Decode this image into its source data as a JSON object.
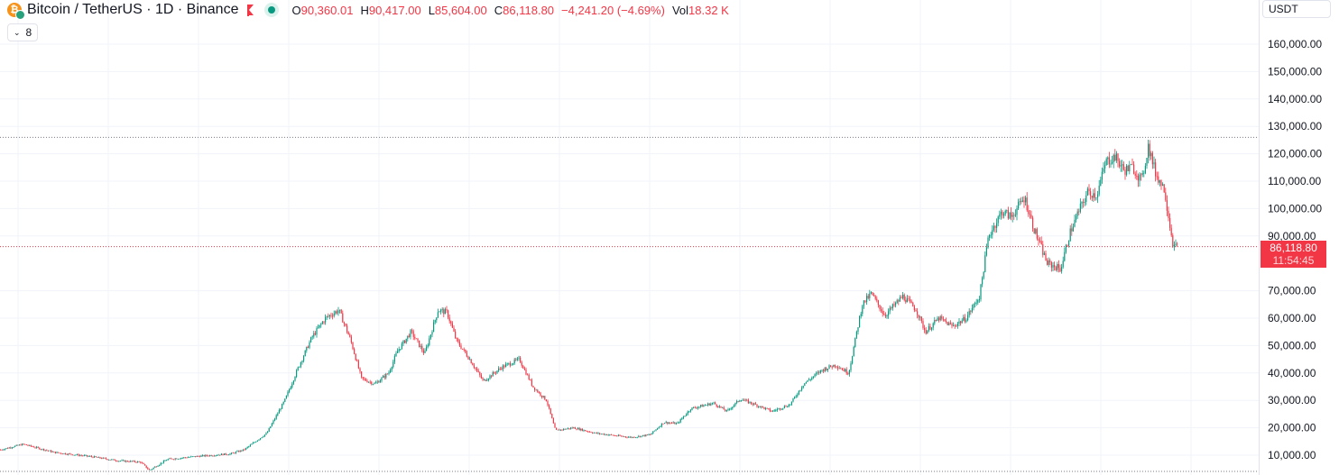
{
  "symbol": {
    "title": "Bitcoin / TetherUS · 1D · Binance",
    "logo_glyph": "₿",
    "flag_icon": "flag-icon",
    "status": "market-open"
  },
  "ohlc": {
    "o_label": "O",
    "o_value": "90,360.01",
    "h_label": "H",
    "h_value": "90,417.00",
    "l_label": "L",
    "l_value": "85,604.00",
    "c_label": "C",
    "c_value": "86,118.80",
    "change": "−4,241.20 (−4.69%)",
    "vol_label": "Vol",
    "vol_value": "18.32 K"
  },
  "indicators": {
    "count": "8"
  },
  "currency": {
    "label": "USDT"
  },
  "last_price": {
    "price": "86,118.80",
    "countdown": "11:54:45"
  },
  "colors": {
    "up": "#089981",
    "down": "#f23645",
    "grid": "#f0f3fa",
    "text": "#131722"
  },
  "chart_data": {
    "type": "candlestick",
    "price_scale": {
      "labels": [
        "160,000.00",
        "150,000.00",
        "140,000.00",
        "130,000.00",
        "120,000.00",
        "110,000.00",
        "100,000.00",
        "90,000.00",
        "70,000.00",
        "60,000.00",
        "50,000.00",
        "40,000.00",
        "30,000.00",
        "20,000.00",
        "10,000.00"
      ],
      "values": [
        160000,
        150000,
        140000,
        130000,
        120000,
        110000,
        100000,
        90000,
        70000,
        60000,
        50000,
        40000,
        30000,
        20000,
        10000
      ],
      "range": [
        3000,
        165000
      ]
    },
    "reference_lines": {
      "high_line": 126000,
      "last_price": 86118.8
    },
    "trend_points": [
      [
        0,
        12000
      ],
      [
        25,
        14000
      ],
      [
        60,
        11000
      ],
      [
        100,
        9500
      ],
      [
        130,
        8000
      ],
      [
        155,
        7500
      ],
      [
        165,
        4500
      ],
      [
        185,
        8500
      ],
      [
        215,
        9500
      ],
      [
        255,
        10500
      ],
      [
        270,
        12000
      ],
      [
        295,
        18000
      ],
      [
        315,
        30000
      ],
      [
        330,
        42000
      ],
      [
        345,
        53000
      ],
      [
        360,
        60000
      ],
      [
        375,
        63000
      ],
      [
        388,
        52000
      ],
      [
        400,
        38000
      ],
      [
        415,
        36000
      ],
      [
        430,
        40000
      ],
      [
        440,
        48000
      ],
      [
        455,
        55000
      ],
      [
        470,
        47000
      ],
      [
        485,
        63000
      ],
      [
        495,
        62000
      ],
      [
        505,
        52000
      ],
      [
        520,
        45000
      ],
      [
        535,
        37000
      ],
      [
        555,
        42000
      ],
      [
        575,
        45000
      ],
      [
        590,
        35000
      ],
      [
        605,
        30000
      ],
      [
        615,
        19000
      ],
      [
        635,
        20000
      ],
      [
        660,
        18000
      ],
      [
        685,
        17000
      ],
      [
        700,
        16500
      ],
      [
        720,
        17500
      ],
      [
        735,
        22000
      ],
      [
        750,
        21500
      ],
      [
        765,
        27000
      ],
      [
        790,
        29000
      ],
      [
        805,
        26000
      ],
      [
        820,
        30500
      ],
      [
        840,
        28000
      ],
      [
        855,
        26000
      ],
      [
        875,
        28500
      ],
      [
        890,
        36000
      ],
      [
        910,
        41000
      ],
      [
        925,
        43000
      ],
      [
        940,
        40000
      ],
      [
        955,
        65000
      ],
      [
        965,
        69000
      ],
      [
        980,
        61000
      ],
      [
        1000,
        68000
      ],
      [
        1015,
        63000
      ],
      [
        1025,
        55000
      ],
      [
        1040,
        60000
      ],
      [
        1055,
        57000
      ],
      [
        1070,
        60000
      ],
      [
        1085,
        68000
      ],
      [
        1095,
        90000
      ],
      [
        1110,
        99000
      ],
      [
        1120,
        97000
      ],
      [
        1135,
        104000
      ],
      [
        1145,
        93000
      ],
      [
        1160,
        80000
      ],
      [
        1175,
        78000
      ],
      [
        1185,
        91000
      ],
      [
        1195,
        99000
      ],
      [
        1205,
        106000
      ],
      [
        1215,
        105000
      ],
      [
        1225,
        117000
      ],
      [
        1235,
        119000
      ],
      [
        1245,
        114000
      ],
      [
        1255,
        115000
      ],
      [
        1265,
        110000
      ],
      [
        1272,
        123000
      ],
      [
        1280,
        113000
      ],
      [
        1290,
        107000
      ],
      [
        1296,
        94000
      ],
      [
        1300,
        86000
      ],
      [
        1305,
        86118
      ]
    ]
  }
}
